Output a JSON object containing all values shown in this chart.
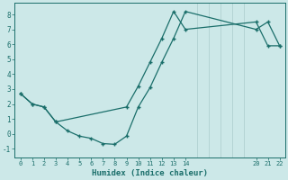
{
  "xlabel": "Humidex (Indice chaleur)",
  "background_color": "#cce8e8",
  "grid_color": "#aacccc",
  "line_color": "#1a6e6a",
  "xlim": [
    -0.5,
    22.5
  ],
  "ylim": [
    -1.6,
    8.8
  ],
  "xticks": [
    0,
    1,
    2,
    3,
    4,
    5,
    6,
    7,
    8,
    9,
    10,
    11,
    12,
    13,
    14,
    20,
    21,
    22
  ],
  "yticks": [
    -1,
    0,
    1,
    2,
    3,
    4,
    5,
    6,
    7,
    8
  ],
  "line1_x": [
    0,
    1,
    2,
    3,
    4,
    5,
    6,
    7,
    8,
    9,
    10,
    11,
    12,
    13,
    14,
    20,
    21,
    22
  ],
  "line1_y": [
    2.7,
    2.0,
    1.8,
    0.8,
    0.2,
    -0.15,
    -0.3,
    -0.65,
    -0.7,
    -0.15,
    1.8,
    3.1,
    4.8,
    6.4,
    8.2,
    7.0,
    7.5,
    5.9
  ],
  "line2_x": [
    0,
    1,
    2,
    3,
    9,
    10,
    11,
    12,
    13,
    14,
    20,
    21,
    22
  ],
  "line2_y": [
    2.7,
    2.0,
    1.8,
    0.8,
    1.8,
    3.2,
    4.8,
    6.4,
    8.2,
    7.0,
    7.5,
    5.9,
    5.9
  ]
}
